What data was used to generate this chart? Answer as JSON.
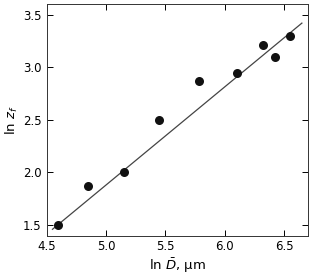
{
  "scatter_x": [
    4.6,
    4.85,
    5.15,
    5.45,
    5.78,
    6.1,
    6.32,
    6.42,
    6.55
  ],
  "scatter_y": [
    1.5,
    1.87,
    2.0,
    2.5,
    2.87,
    2.95,
    3.21,
    3.1,
    3.3
  ],
  "line_x": [
    4.55,
    6.65
  ],
  "line_y": [
    1.46,
    3.42
  ],
  "xlabel": "ln $\\bar{D}$, μm",
  "ylabel": "ln $z_f$",
  "xlim": [
    4.5,
    6.7
  ],
  "ylim": [
    1.4,
    3.6
  ],
  "xticks": [
    4.5,
    5.0,
    5.5,
    6.0,
    6.5
  ],
  "yticks": [
    1.5,
    2.0,
    2.5,
    3.0,
    3.5
  ],
  "dot_color": "#111111",
  "line_color": "#444444",
  "marker_size": 6.5,
  "xlabel_fontsize": 9.5,
  "ylabel_fontsize": 9.5,
  "tick_labelsize": 8.5
}
